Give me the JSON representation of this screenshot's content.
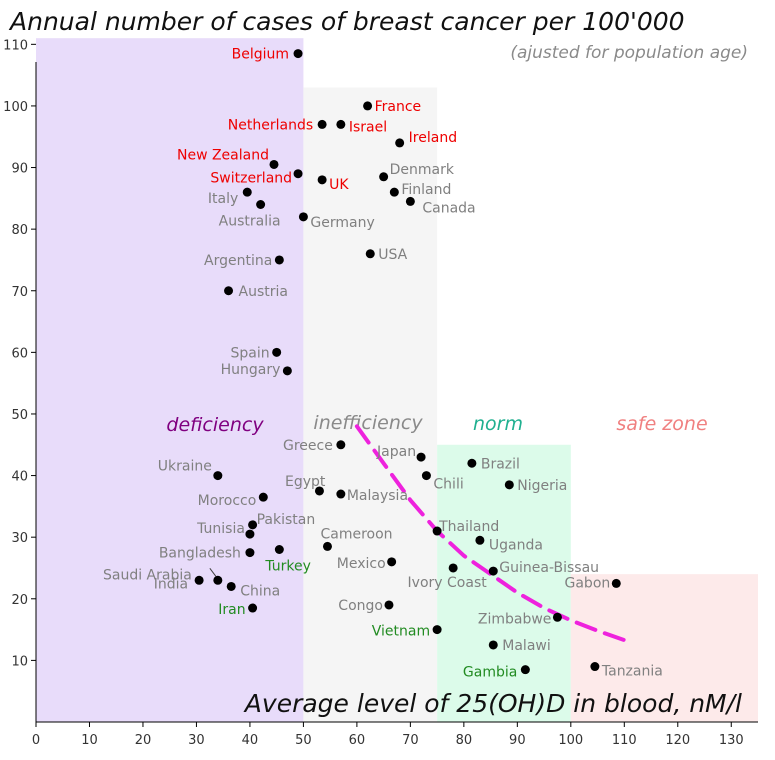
{
  "chart_data": {
    "type": "scatter",
    "title": "Annual number of cases of breast cancer per 100'000",
    "subtitle": "(ajusted for population age)",
    "xlabel": "Average level of 25(OH)D in blood, nM/l",
    "ylabel": "",
    "xlim": [
      0,
      135
    ],
    "ylim": [
      0,
      112
    ],
    "x_ticks": [
      0,
      10,
      20,
      30,
      40,
      50,
      60,
      70,
      80,
      90,
      100,
      110,
      120,
      130
    ],
    "y_ticks": [
      10,
      20,
      30,
      40,
      50,
      60,
      70,
      80,
      90,
      100,
      110
    ],
    "grid": false,
    "zones": [
      {
        "label": "deficiency",
        "x": [
          0,
          50
        ],
        "y_top": 111,
        "color": "#e8dcfa",
        "label_color": "#800080"
      },
      {
        "label": "inefficiency",
        "x": [
          50,
          75
        ],
        "y_top": 103,
        "color": "#f5f5f5",
        "label_color": "#8a8a8a"
      },
      {
        "label": "norm",
        "x": [
          75,
          100
        ],
        "y_top": 45,
        "color": "#dcfbea",
        "label_color": "#20b090"
      },
      {
        "label": "safe zone",
        "x": [
          100,
          135
        ],
        "y_top": 24,
        "color": "#fdeaea",
        "label_color": "#f08080"
      }
    ],
    "trend_line": {
      "x": [
        60,
        65,
        70,
        75,
        80,
        85,
        90,
        95,
        100,
        105,
        110
      ],
      "y": [
        48,
        42,
        36,
        31,
        27,
        24,
        21,
        18.5,
        16.5,
        14.8,
        13.3
      ],
      "color": "#ee22dd"
    },
    "points": [
      {
        "name": "Belgium",
        "x": 49,
        "y": 108.5,
        "color": "#ee0000"
      },
      {
        "name": "France",
        "x": 62,
        "y": 100,
        "color": "#ee0000"
      },
      {
        "name": "Netherlands",
        "x": 53.5,
        "y": 97,
        "color": "#ee0000"
      },
      {
        "name": "Israel",
        "x": 57,
        "y": 97,
        "color": "#ee0000"
      },
      {
        "name": "Ireland",
        "x": 68,
        "y": 94,
        "color": "#ee0000"
      },
      {
        "name": "New Zealand",
        "x": 44.5,
        "y": 90.5,
        "color": "#ee0000"
      },
      {
        "name": "Switzerland",
        "x": 49,
        "y": 89,
        "color": "#ee0000"
      },
      {
        "name": "UK",
        "x": 53.5,
        "y": 88,
        "color": "#ee0000"
      },
      {
        "name": "Denmark",
        "x": 65,
        "y": 88.5,
        "color": "#808080"
      },
      {
        "name": "Finland",
        "x": 67,
        "y": 86,
        "color": "#808080"
      },
      {
        "name": "Canada",
        "x": 70,
        "y": 84.5,
        "color": "#808080"
      },
      {
        "name": "Italy",
        "x": 39.5,
        "y": 86,
        "color": "#808080"
      },
      {
        "name": "Australia",
        "x": 42,
        "y": 84,
        "color": "#808080"
      },
      {
        "name": "Germany",
        "x": 50,
        "y": 82,
        "color": "#808080"
      },
      {
        "name": "USA",
        "x": 62.5,
        "y": 76,
        "color": "#808080"
      },
      {
        "name": "Argentina",
        "x": 45.5,
        "y": 75,
        "color": "#808080"
      },
      {
        "name": "Austria",
        "x": 36,
        "y": 70,
        "color": "#808080"
      },
      {
        "name": "Spain",
        "x": 45,
        "y": 60,
        "color": "#808080"
      },
      {
        "name": "Hungary",
        "x": 47,
        "y": 57,
        "color": "#808080"
      },
      {
        "name": "Greece",
        "x": 57,
        "y": 45,
        "color": "#808080"
      },
      {
        "name": "Japan",
        "x": 72,
        "y": 43,
        "color": "#808080"
      },
      {
        "name": "Brazil",
        "x": 81.5,
        "y": 42,
        "color": "#808080"
      },
      {
        "name": "Ukraine",
        "x": 34,
        "y": 40,
        "color": "#808080"
      },
      {
        "name": "Chili",
        "x": 73,
        "y": 40,
        "color": "#808080"
      },
      {
        "name": "Nigeria",
        "x": 88.5,
        "y": 38.5,
        "color": "#808080"
      },
      {
        "name": "Egypt",
        "x": 53,
        "y": 37.5,
        "color": "#808080"
      },
      {
        "name": "Malaysia",
        "x": 57,
        "y": 37,
        "color": "#808080"
      },
      {
        "name": "Morocco",
        "x": 42.5,
        "y": 36.5,
        "color": "#808080"
      },
      {
        "name": "Pakistan",
        "x": 40.5,
        "y": 32,
        "color": "#808080"
      },
      {
        "name": "Tunisia",
        "x": 40,
        "y": 30.5,
        "color": "#808080"
      },
      {
        "name": "Thailand",
        "x": 75,
        "y": 31,
        "color": "#808080"
      },
      {
        "name": "Uganda",
        "x": 83,
        "y": 29.5,
        "color": "#808080"
      },
      {
        "name": "Cameroon",
        "x": 54.5,
        "y": 28.5,
        "color": "#808080"
      },
      {
        "name": "Bangladesh",
        "x": 40,
        "y": 27.5,
        "color": "#808080"
      },
      {
        "name": "Turkey",
        "x": 45.5,
        "y": 28,
        "color": "#228b22"
      },
      {
        "name": "Mexico",
        "x": 66.5,
        "y": 26,
        "color": "#808080"
      },
      {
        "name": "Ivory Coast",
        "x": 78,
        "y": 25,
        "color": "#808080"
      },
      {
        "name": "Guinea-Bissau",
        "x": 85.5,
        "y": 24.5,
        "color": "#808080"
      },
      {
        "name": "Saudi Arabia",
        "x": 34,
        "y": 23,
        "color": "#808080"
      },
      {
        "name": "India",
        "x": 30.5,
        "y": 23,
        "color": "#808080"
      },
      {
        "name": "China",
        "x": 36.5,
        "y": 22,
        "color": "#808080"
      },
      {
        "name": "Gabon",
        "x": 108.5,
        "y": 22.5,
        "color": "#808080"
      },
      {
        "name": "Iran",
        "x": 40.5,
        "y": 18.5,
        "color": "#228b22"
      },
      {
        "name": "Congo",
        "x": 66,
        "y": 19,
        "color": "#808080"
      },
      {
        "name": "Zimbabwe",
        "x": 97.5,
        "y": 17,
        "color": "#808080"
      },
      {
        "name": "Vietnam",
        "x": 75,
        "y": 15,
        "color": "#228b22"
      },
      {
        "name": "Malawi",
        "x": 85.5,
        "y": 12.5,
        "color": "#808080"
      },
      {
        "name": "Tanzania",
        "x": 104.5,
        "y": 9,
        "color": "#808080"
      },
      {
        "name": "Gambia",
        "x": 91.5,
        "y": 8.5,
        "color": "#228b22"
      }
    ]
  }
}
